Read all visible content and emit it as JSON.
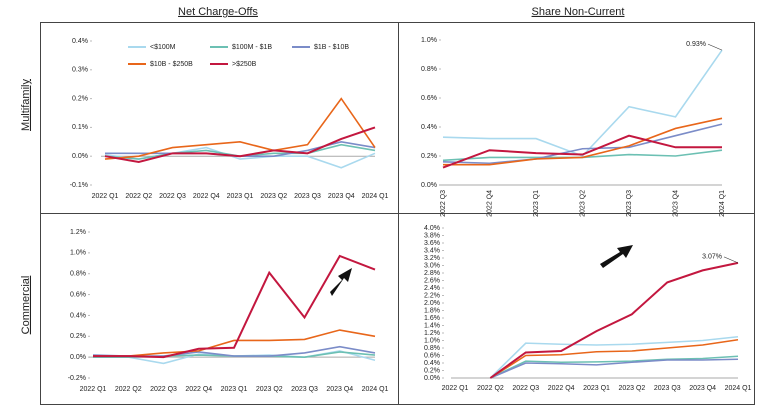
{
  "column_headers": [
    "Net Charge-Offs",
    "Share Non-Current"
  ],
  "row_labels": [
    "Multifamily",
    "Commercial"
  ],
  "chart_data": [
    {
      "type": "line",
      "categories": [
        "2022 Q1",
        "2022 Q2",
        "2022 Q3",
        "2022 Q4",
        "2023 Q1",
        "2023 Q2",
        "2023 Q3",
        "2023 Q4",
        "2024 Q1"
      ],
      "ylim": [
        -0.1,
        0.4
      ],
      "yticks": [
        {
          "value": -0.1,
          "label": "-0.1%"
        },
        {
          "value": 0,
          "label": "0.0%"
        },
        {
          "value": 0.1,
          "label": "0.1%"
        },
        {
          "value": 0.2,
          "label": "0.2%"
        },
        {
          "value": 0.3,
          "label": "0.3%"
        },
        {
          "value": 0.4,
          "label": "0.4%"
        }
      ],
      "series": [
        {
          "name": "<$100M",
          "color": "#a9d9ee",
          "values": [
            0.005,
            -0.01,
            0.01,
            0.03,
            -0.01,
            0.0,
            0.0,
            -0.04,
            0.01
          ]
        },
        {
          "name": "$100M - $1B",
          "color": "#6cc0b3",
          "values": [
            0.0,
            -0.01,
            0.01,
            0.02,
            0.0,
            0.01,
            0.01,
            0.04,
            0.02
          ]
        },
        {
          "name": "$1B - $10B",
          "color": "#7b8cc8",
          "values": [
            0.01,
            0.01,
            0.01,
            0.01,
            0.0,
            0.0,
            0.02,
            0.05,
            0.03
          ]
        },
        {
          "name": "$10B - $250B",
          "color": "#e8661a",
          "values": [
            -0.01,
            0.0,
            0.03,
            0.04,
            0.05,
            0.02,
            0.04,
            0.2,
            0.03
          ]
        },
        {
          "name": ">$250B",
          "color": "#c3173f",
          "values": [
            0.0,
            -0.02,
            0.01,
            0.01,
            0.0,
            0.02,
            0.01,
            0.06,
            0.1
          ]
        }
      ]
    },
    {
      "type": "line",
      "categories": [
        "2022 Q3",
        "2022 Q4",
        "2023 Q1",
        "2023 Q2",
        "2023 Q3",
        "2023 Q4",
        "2024 Q1"
      ],
      "ylim": [
        0,
        1.0
      ],
      "yticks": [
        {
          "value": 0,
          "label": "0.0%"
        },
        {
          "value": 0.2,
          "label": "0.2%"
        },
        {
          "value": 0.4,
          "label": "0.4%"
        },
        {
          "value": 0.6,
          "label": "0.6%"
        },
        {
          "value": 0.8,
          "label": "0.8%"
        },
        {
          "value": 1.0,
          "label": "1.0%"
        }
      ],
      "annotation": "0.93%",
      "series": [
        {
          "color": "#a9d9ee",
          "values": [
            0.33,
            0.32,
            0.32,
            0.2,
            0.54,
            0.47,
            0.93
          ]
        },
        {
          "color": "#6cc0b3",
          "values": [
            0.17,
            0.19,
            0.19,
            0.19,
            0.21,
            0.2,
            0.24
          ]
        },
        {
          "color": "#7b8cc8",
          "values": [
            0.16,
            0.15,
            0.18,
            0.25,
            0.26,
            0.34,
            0.42
          ]
        },
        {
          "color": "#e8661a",
          "values": [
            0.14,
            0.14,
            0.18,
            0.19,
            0.27,
            0.39,
            0.46
          ]
        },
        {
          "color": "#c3173f",
          "values": [
            0.12,
            0.24,
            0.22,
            0.21,
            0.34,
            0.26,
            0.26
          ]
        }
      ]
    },
    {
      "type": "line",
      "categories": [
        "2022 Q1",
        "2022 Q2",
        "2022 Q3",
        "2022 Q4",
        "2023 Q1",
        "2023 Q2",
        "2023 Q3",
        "2023 Q4",
        "2024 Q1"
      ],
      "ylim": [
        -0.2,
        1.2
      ],
      "yticks": [
        {
          "value": -0.2,
          "label": "-0.2%"
        },
        {
          "value": 0,
          "label": "0.0%"
        },
        {
          "value": 0.2,
          "label": "0.2%"
        },
        {
          "value": 0.4,
          "label": "0.4%"
        },
        {
          "value": 0.6,
          "label": "0.6%"
        },
        {
          "value": 0.8,
          "label": "0.8%"
        },
        {
          "value": 1.0,
          "label": "1.0%"
        },
        {
          "value": 1.2,
          "label": "1.2%"
        }
      ],
      "series": [
        {
          "color": "#a9d9ee",
          "values": [
            0.0,
            0.0,
            -0.06,
            0.03,
            0.01,
            0.02,
            0.0,
            0.06,
            -0.03
          ]
        },
        {
          "color": "#6cc0b3",
          "values": [
            0.0,
            0.0,
            0.01,
            0.02,
            0.01,
            0.01,
            0.0,
            0.05,
            0.02
          ]
        },
        {
          "color": "#7b8cc8",
          "values": [
            0.02,
            0.01,
            0.01,
            0.05,
            0.01,
            0.01,
            0.04,
            0.1,
            0.04
          ]
        },
        {
          "color": "#e8661a",
          "values": [
            0.01,
            0.01,
            0.04,
            0.06,
            0.16,
            0.16,
            0.17,
            0.26,
            0.2
          ]
        },
        {
          "color": "#c3173f",
          "values": [
            0.01,
            0.01,
            0.0,
            0.08,
            0.09,
            0.81,
            0.38,
            0.97,
            0.84
          ]
        }
      ]
    },
    {
      "type": "line",
      "categories": [
        "2022 Q1",
        "2022 Q2",
        "2022 Q3",
        "2022 Q4",
        "2023 Q1",
        "2023 Q2",
        "2023 Q3",
        "2023 Q4",
        "2024 Q1"
      ],
      "ylim": [
        0,
        4.0
      ],
      "yticks": [
        {
          "value": 0,
          "label": "0.0%"
        },
        {
          "value": 0.2,
          "label": "0.2%"
        },
        {
          "value": 0.4,
          "label": "0.4%"
        },
        {
          "value": 0.6,
          "label": "0.6%"
        },
        {
          "value": 0.8,
          "label": "0.8%"
        },
        {
          "value": 1.0,
          "label": "1.0%"
        },
        {
          "value": 1.2,
          "label": "1.2%"
        },
        {
          "value": 1.4,
          "label": "1.4%"
        },
        {
          "value": 1.6,
          "label": "1.6%"
        },
        {
          "value": 1.8,
          "label": "1.8%"
        },
        {
          "value": 2.0,
          "label": "2.0%"
        },
        {
          "value": 2.2,
          "label": "2.2%"
        },
        {
          "value": 2.4,
          "label": "2.4%"
        },
        {
          "value": 2.6,
          "label": "2.6%"
        },
        {
          "value": 2.8,
          "label": "2.8%"
        },
        {
          "value": 3.0,
          "label": "3.0%"
        },
        {
          "value": 3.2,
          "label": "3.2%"
        },
        {
          "value": 3.4,
          "label": "3.4%"
        },
        {
          "value": 3.6,
          "label": "3.6%"
        },
        {
          "value": 3.8,
          "label": "3.8%"
        },
        {
          "value": 4.0,
          "label": "4.0%"
        }
      ],
      "annotation": "3.07%",
      "series": [
        {
          "color": "#a9d9ee",
          "values": [
            null,
            0.0,
            0.93,
            0.9,
            0.88,
            0.9,
            0.95,
            1.0,
            1.1
          ]
        },
        {
          "color": "#6cc0b3",
          "values": [
            null,
            0.0,
            0.45,
            0.42,
            0.43,
            0.45,
            0.5,
            0.52,
            0.58
          ]
        },
        {
          "color": "#7b8cc8",
          "values": [
            null,
            0.0,
            0.4,
            0.38,
            0.35,
            0.42,
            0.48,
            0.48,
            0.5
          ]
        },
        {
          "color": "#e8661a",
          "values": [
            null,
            0.0,
            0.6,
            0.62,
            0.7,
            0.72,
            0.8,
            0.88,
            1.02
          ]
        },
        {
          "color": "#c3173f",
          "values": [
            null,
            0.0,
            0.68,
            0.72,
            1.25,
            1.7,
            2.55,
            2.87,
            3.07
          ]
        }
      ]
    }
  ]
}
